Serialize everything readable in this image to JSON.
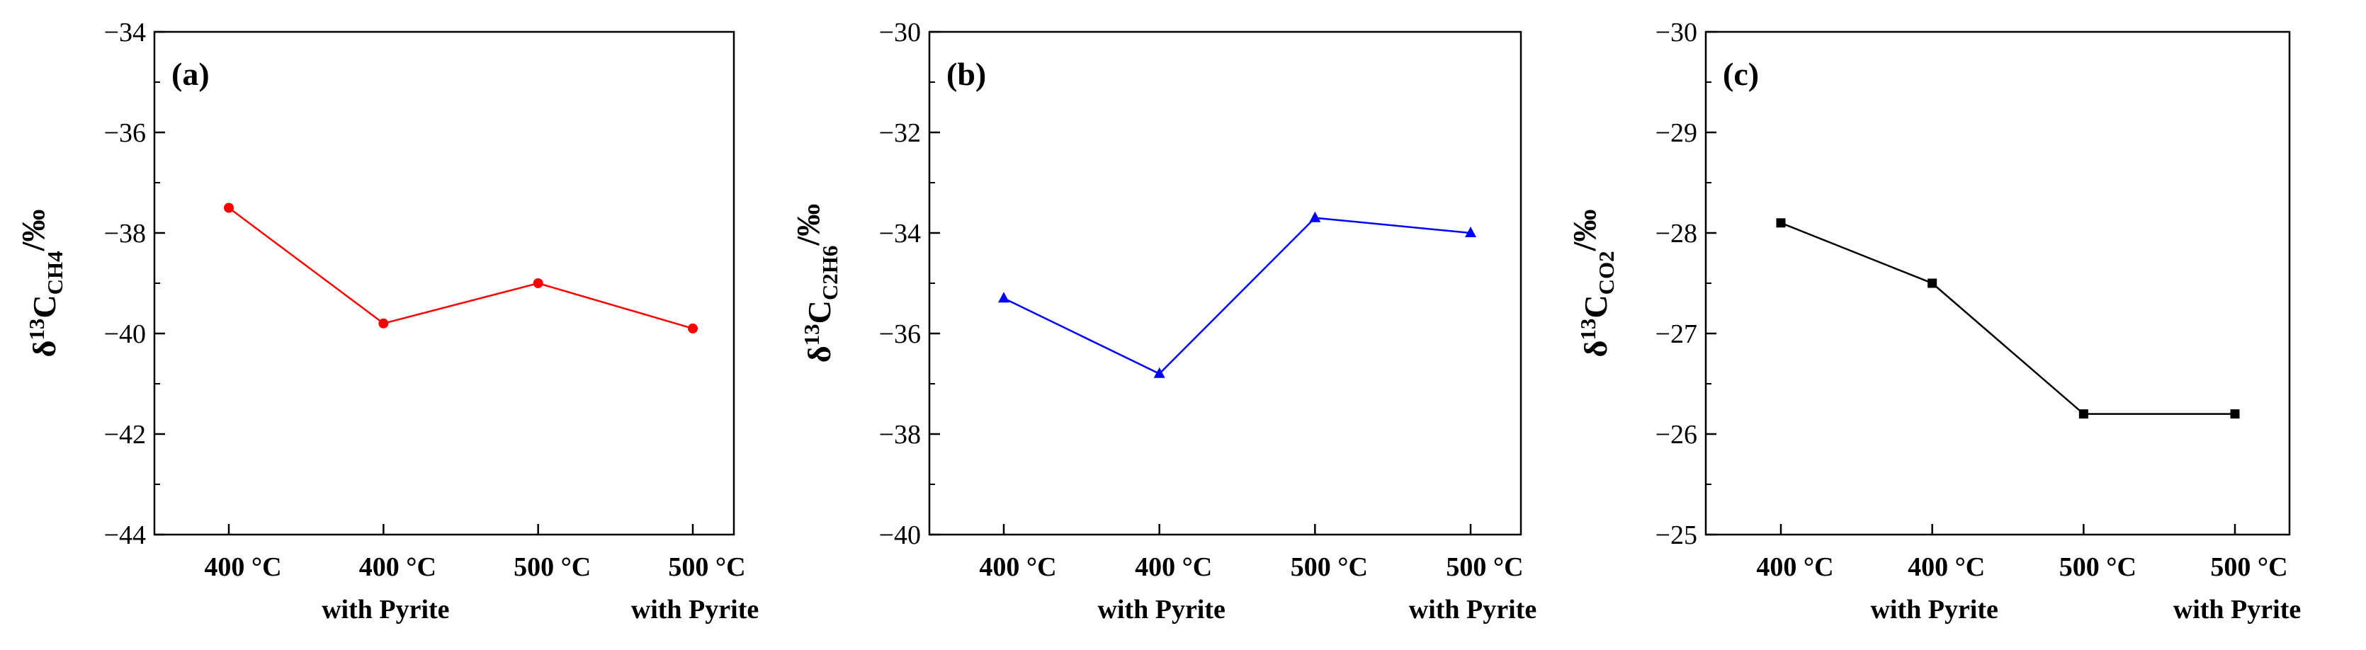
{
  "chart_data": [
    {
      "type": "line",
      "panel_label": "(a)",
      "ylabel": {
        "base": "δ",
        "sup": "13",
        "mid": "C",
        "sub": "CH4",
        "unit": "/‰"
      },
      "categories": [
        {
          "line1": "400 °C",
          "line2": ""
        },
        {
          "line1": "400 °C",
          "line2": "with Pyrite"
        },
        {
          "line1": "500 °C",
          "line2": ""
        },
        {
          "line1": "500 °C",
          "line2": "with Pyrite"
        }
      ],
      "ylim": [
        -44,
        -34
      ],
      "yticks": [
        -44,
        -42,
        -40,
        -38,
        -36,
        -34
      ],
      "ytick_labels": [
        "−44",
        "−42",
        "−40",
        "−38",
        "−36",
        "−34"
      ],
      "minor_step": 1,
      "values": [
        -37.5,
        -39.8,
        -39.0,
        -39.9
      ],
      "color": "#ff0000",
      "marker": "circle",
      "inverted": false
    },
    {
      "type": "line",
      "panel_label": "(b)",
      "ylabel": {
        "base": "δ",
        "sup": "13",
        "mid": "C",
        "sub": "C2H6",
        "unit": "/‰"
      },
      "categories": [
        {
          "line1": "400 °C",
          "line2": ""
        },
        {
          "line1": "400 °C",
          "line2": "with Pyrite"
        },
        {
          "line1": "500 °C",
          "line2": ""
        },
        {
          "line1": "500 °C",
          "line2": "with Pyrite"
        }
      ],
      "ylim": [
        -40,
        -30
      ],
      "yticks": [
        -40,
        -38,
        -36,
        -34,
        -32,
        -30
      ],
      "ytick_labels": [
        "−40",
        "−38",
        "−36",
        "−34",
        "−32",
        "−30"
      ],
      "minor_step": 1,
      "values": [
        -35.3,
        -36.8,
        -33.7,
        -34.0
      ],
      "color": "#0000ff",
      "marker": "triangle",
      "inverted": false
    },
    {
      "type": "line",
      "panel_label": "(c)",
      "ylabel": {
        "base": "δ",
        "sup": "13",
        "mid": "C",
        "sub": "CO2",
        "unit": "/‰"
      },
      "categories": [
        {
          "line1": "400 °C",
          "line2": ""
        },
        {
          "line1": "400 °C",
          "line2": "with Pyrite"
        },
        {
          "line1": "500 °C",
          "line2": ""
        },
        {
          "line1": "500 °C",
          "line2": "with Pyrite"
        }
      ],
      "ylim": [
        -25,
        -30
      ],
      "yticks": [
        -25,
        -26,
        -27,
        -28,
        -29,
        -30
      ],
      "ytick_labels": [
        "−25",
        "−26",
        "−27",
        "−28",
        "−29",
        "−30"
      ],
      "minor_step": 0.5,
      "values": [
        -28.1,
        -27.5,
        -26.2,
        -26.2
      ],
      "color": "#000000",
      "marker": "square",
      "inverted": true
    }
  ]
}
